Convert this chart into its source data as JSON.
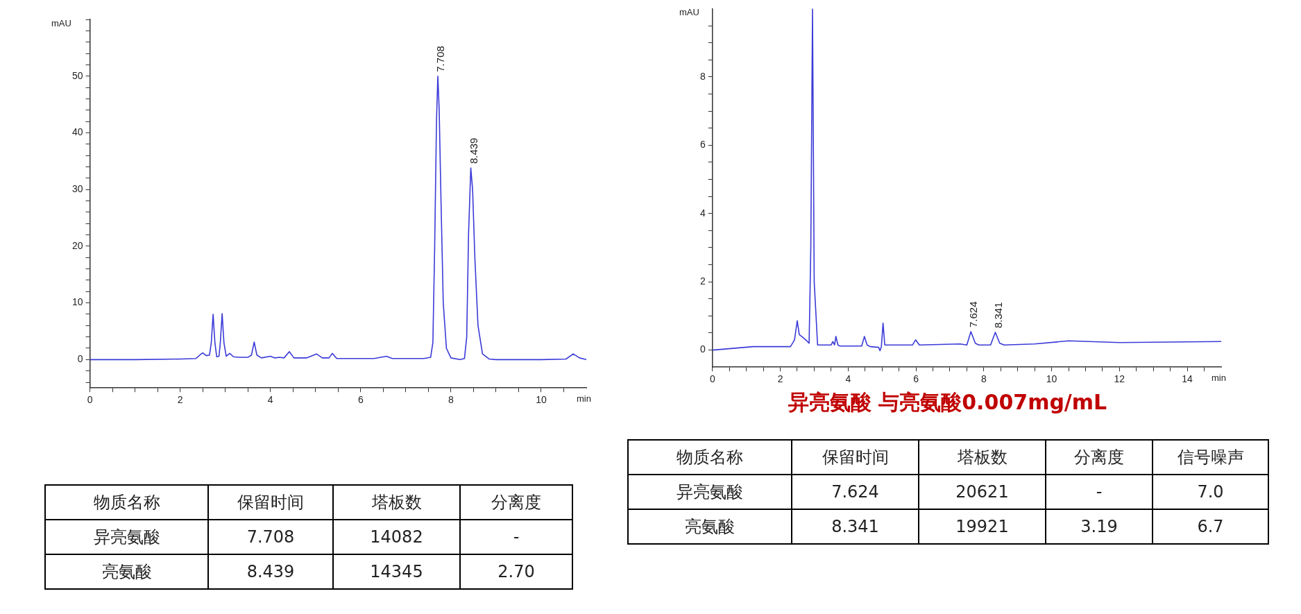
{
  "chart_data": [
    {
      "type": "line",
      "xlabel": "min",
      "ylabel": "mAU",
      "xlim": [
        0,
        11
      ],
      "ylim": [
        -5,
        60
      ],
      "marker": "none",
      "xticks": [
        0,
        {
          "value": 0.5,
          "label": null
        },
        {
          "value": 1,
          "label": null
        },
        {
          "value": 1.5,
          "label": null
        },
        2,
        {
          "value": 2.5,
          "label": null
        },
        {
          "value": 3,
          "label": null
        },
        {
          "value": 3.5,
          "label": null
        },
        4,
        {
          "value": 4.5,
          "label": null
        },
        {
          "value": 5,
          "label": null
        },
        {
          "value": 5.5,
          "label": null
        },
        6,
        {
          "value": 6.5,
          "label": null
        },
        {
          "value": 7,
          "label": null
        },
        {
          "value": 7.5,
          "label": null
        },
        8,
        {
          "value": 8.5,
          "label": null
        },
        {
          "value": 9,
          "label": null
        },
        {
          "value": 9.5,
          "label": null
        },
        10,
        {
          "value": 10.5,
          "label": null
        }
      ],
      "yticks": [
        {
          "value": -4,
          "label": null
        },
        {
          "value": -2,
          "label": null
        },
        0,
        {
          "value": 2,
          "label": null
        },
        {
          "value": 4,
          "label": null
        },
        {
          "value": 6,
          "label": null
        },
        {
          "value": 8,
          "label": null
        },
        10,
        {
          "value": 12,
          "label": null
        },
        {
          "value": 14,
          "label": null
        },
        {
          "value": 16,
          "label": null
        },
        {
          "value": 18,
          "label": null
        },
        20,
        {
          "value": 22,
          "label": null
        },
        {
          "value": 24,
          "label": null
        },
        {
          "value": 26,
          "label": null
        },
        {
          "value": 28,
          "label": null
        },
        30,
        {
          "value": 32,
          "label": null
        },
        {
          "value": 34,
          "label": null
        },
        {
          "value": 36,
          "label": null
        },
        {
          "value": 38,
          "label": null
        },
        40,
        {
          "value": 42,
          "label": null
        },
        {
          "value": 44,
          "label": null
        },
        {
          "value": 46,
          "label": null
        },
        {
          "value": 48,
          "label": null
        },
        50,
        {
          "value": 52,
          "label": null
        },
        {
          "value": 54,
          "label": null
        },
        {
          "value": 56,
          "label": null
        },
        {
          "value": 58,
          "label": null
        },
        {
          "value": 60,
          "label": null
        }
      ],
      "annotations": [
        {
          "text": "7.708",
          "x": 7.71,
          "y": 50.0
        },
        {
          "text": "8.439",
          "x": 8.44,
          "y": 33.8
        }
      ],
      "series": [
        {
          "color": "#3a3ad8",
          "x": [
            0,
            1,
            2,
            2.35,
            2.45,
            2.5,
            2.58,
            2.65,
            2.69,
            2.73,
            2.77,
            2.81,
            2.86,
            2.89,
            2.93,
            2.97,
            3.02,
            3.1,
            3.18,
            3.3,
            3.5,
            3.58,
            3.64,
            3.7,
            3.8,
            4.0,
            4.1,
            4.2,
            4.3,
            4.42,
            4.52,
            4.8,
            5.02,
            5.15,
            5.3,
            5.37,
            5.47,
            6.0,
            6.3,
            6.57,
            6.7,
            7.4,
            7.55,
            7.6,
            7.64,
            7.68,
            7.71,
            7.74,
            7.78,
            7.83,
            7.9,
            8.0,
            8.2,
            8.3,
            8.35,
            8.39,
            8.44,
            8.48,
            8.53,
            8.6,
            8.7,
            8.85,
            9,
            10,
            10.55,
            10.71,
            10.85,
            11
          ],
          "values": [
            0,
            0,
            0.1,
            0.2,
            0.9,
            1.2,
            0.7,
            0.8,
            3,
            8.0,
            3,
            0.5,
            0.6,
            3,
            8.1,
            3,
            0.6,
            1.1,
            0.5,
            0.4,
            0.4,
            0.8,
            3.1,
            0.8,
            0.3,
            0.6,
            0.3,
            0.4,
            0.3,
            1.4,
            0.3,
            0.3,
            1.0,
            0.3,
            0.3,
            1.1,
            0.2,
            0.2,
            0.2,
            0.6,
            0.2,
            0.2,
            0.4,
            3,
            20,
            42,
            50.0,
            44,
            28,
            10,
            2,
            0.3,
            0,
            0.2,
            4,
            22,
            33.8,
            30,
            18,
            6,
            1,
            0.1,
            0,
            0,
            0.1,
            1.0,
            0.3,
            0
          ]
        }
      ]
    },
    {
      "type": "line",
      "xlabel": "min",
      "ylabel": "mAU",
      "xlim": [
        0,
        15
      ],
      "ylim": [
        -0.5,
        10
      ],
      "marker": "none",
      "xticks": [
        0,
        {
          "value": 0.5,
          "label": null
        },
        {
          "value": 1,
          "label": null
        },
        {
          "value": 1.5,
          "label": null
        },
        2,
        {
          "value": 2.5,
          "label": null
        },
        {
          "value": 3,
          "label": null
        },
        {
          "value": 3.5,
          "label": null
        },
        4,
        {
          "value": 4.5,
          "label": null
        },
        {
          "value": 5,
          "label": null
        },
        {
          "value": 5.5,
          "label": null
        },
        6,
        {
          "value": 6.5,
          "label": null
        },
        {
          "value": 7,
          "label": null
        },
        {
          "value": 7.5,
          "label": null
        },
        8,
        {
          "value": 8.5,
          "label": null
        },
        {
          "value": 9,
          "label": null
        },
        {
          "value": 9.5,
          "label": null
        },
        10,
        {
          "value": 10.5,
          "label": null
        },
        {
          "value": 11,
          "label": null
        },
        {
          "value": 11.5,
          "label": null
        },
        12,
        {
          "value": 12.5,
          "label": null
        },
        {
          "value": 13,
          "label": null
        },
        {
          "value": 13.5,
          "label": null
        },
        14,
        {
          "value": 14.5,
          "label": null
        }
      ],
      "yticks": [
        0,
        {
          "value": 0.5,
          "label": null
        },
        {
          "value": 1,
          "label": null
        },
        {
          "value": 1.5,
          "label": null
        },
        2,
        {
          "value": 2.5,
          "label": null
        },
        {
          "value": 3,
          "label": null
        },
        {
          "value": 3.5,
          "label": null
        },
        4,
        {
          "value": 4.5,
          "label": null
        },
        {
          "value": 5,
          "label": null
        },
        {
          "value": 5.5,
          "label": null
        },
        6,
        {
          "value": 6.5,
          "label": null
        },
        {
          "value": 7,
          "label": null
        },
        {
          "value": 7.5,
          "label": null
        },
        8,
        {
          "value": 8.5,
          "label": null
        },
        {
          "value": 9,
          "label": null
        },
        {
          "value": 9.5,
          "label": null
        }
      ],
      "annotations": [
        {
          "text": "7.624",
          "x": 7.62,
          "y": 0.54
        },
        {
          "text": "8.341",
          "x": 8.34,
          "y": 0.52
        }
      ],
      "series": [
        {
          "color": "#3a3ad8",
          "x": [
            0,
            1.2,
            2.3,
            2.42,
            2.5,
            2.56,
            2.63,
            2.75,
            2.85,
            2.9,
            2.95,
            3.0,
            3.1,
            3.5,
            3.55,
            3.6,
            3.64,
            3.7,
            3.75,
            4.4,
            4.48,
            4.56,
            4.65,
            4.9,
            4.94,
            4.98,
            5.03,
            5.08,
            5.15,
            5.9,
            5.99,
            6.1,
            7.3,
            7.5,
            7.62,
            7.75,
            7.85,
            8.2,
            8.34,
            8.47,
            8.6,
            9.5,
            10.5,
            12,
            15
          ],
          "values": [
            0,
            0.1,
            0.1,
            0.3,
            0.86,
            0.45,
            0.4,
            0.3,
            0.2,
            3,
            10,
            2,
            0.15,
            0.15,
            0.25,
            0.15,
            0.4,
            0.15,
            0.12,
            0.12,
            0.4,
            0.15,
            0.1,
            0.08,
            -0.02,
            0.1,
            0.79,
            0.15,
            0.15,
            0.15,
            0.3,
            0.15,
            0.18,
            0.15,
            0.54,
            0.2,
            0.15,
            0.15,
            0.52,
            0.2,
            0.15,
            0.18,
            0.27,
            0.22,
            0.25
          ]
        }
      ]
    },
    {
      "type": "other",
      "ylabel": "物质名称",
      "categories": [
        "保留时间",
        "塔板数",
        "分离度"
      ],
      "y_categories": [
        "异亮氨酸",
        "亮氨酸"
      ],
      "cell_labels": [
        [
          "7.708",
          "14082",
          "-"
        ],
        [
          "8.439",
          "14345",
          "2.70"
        ]
      ]
    },
    {
      "type": "other",
      "title": "异亮氨酸 与亮氨酸0.007mg/mL",
      "ylabel": "物质名称",
      "categories": [
        "保留时间",
        "塔板数",
        "分离度",
        "信号噪声"
      ],
      "y_categories": [
        "异亮氨酸",
        "亮氨酸"
      ],
      "cell_labels": [
        [
          "7.624",
          "20621",
          "-",
          "7.0"
        ],
        [
          "8.341",
          "19921",
          "3.19",
          "6.7"
        ]
      ]
    }
  ]
}
